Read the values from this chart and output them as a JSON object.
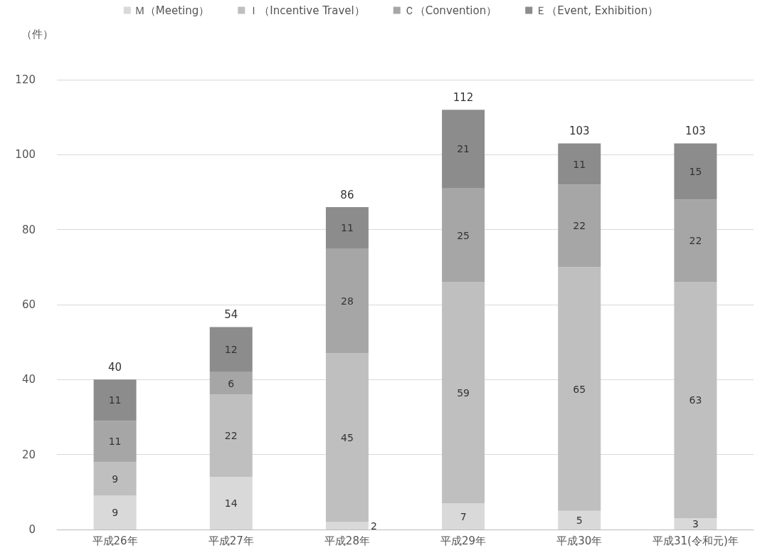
{
  "chart_data": {
    "type": "bar",
    "stacked": true,
    "ylabel": "（件）",
    "categories": [
      "平成26年",
      "平成27年",
      "平成28年",
      "平成29年",
      "平成30年",
      "平成31(令和元)年"
    ],
    "series": [
      {
        "name": "Ｍ（Meeting）",
        "color": "#d9d9d9",
        "values": [
          9,
          14,
          2,
          7,
          5,
          3
        ]
      },
      {
        "name": "Ｉ（Incentive Travel）",
        "color": "#bfbfbf",
        "values": [
          9,
          22,
          45,
          59,
          65,
          63
        ]
      },
      {
        "name": "Ｃ（Convention）",
        "color": "#a6a6a6",
        "values": [
          11,
          6,
          28,
          25,
          22,
          22
        ]
      },
      {
        "name": "Ｅ（Event, Exhibition）",
        "color": "#8c8c8c",
        "values": [
          11,
          12,
          11,
          21,
          11,
          15
        ]
      }
    ],
    "totals": [
      "40",
      "54",
      "86",
      "112",
      "103",
      "103"
    ],
    "ylim": [
      0,
      120
    ],
    "yticks": [
      0,
      20,
      40,
      60,
      80,
      100,
      120
    ],
    "grid": "y",
    "legend": "top",
    "data_labels": true
  }
}
